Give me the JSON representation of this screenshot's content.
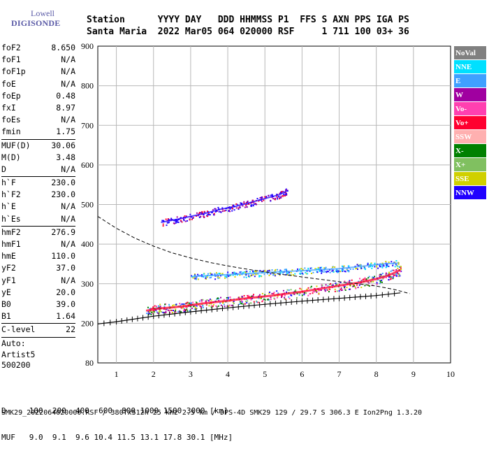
{
  "logo": {
    "top": "Lowell",
    "bottom": "DIGISONDE"
  },
  "header": {
    "line1": "Station      YYYY DAY   DDD HHMMSS P1  FFS S AXN PPS IGA PS",
    "line2": "Santa Maria  2022 Mar05 064 020000 RSF     1 711 100 03+ 36"
  },
  "params": {
    "group1": [
      {
        "name": "foF2",
        "value": "8.650"
      },
      {
        "name": "foF1",
        "value": "N/A"
      },
      {
        "name": "foF1p",
        "value": "N/A"
      },
      {
        "name": "foE",
        "value": "N/A"
      },
      {
        "name": "foEp",
        "value": "0.48"
      },
      {
        "name": "fxI",
        "value": "8.97"
      },
      {
        "name": "foEs",
        "value": "N/A"
      },
      {
        "name": "fmin",
        "value": "1.75"
      }
    ],
    "group2": [
      {
        "name": "MUF(D)",
        "value": "30.06"
      },
      {
        "name": "M(D)",
        "value": "3.48"
      },
      {
        "name": "D",
        "value": "N/A"
      }
    ],
    "group3": [
      {
        "name": "h`F",
        "value": "230.0"
      },
      {
        "name": "h`F2",
        "value": "230.0"
      },
      {
        "name": "h`E",
        "value": "N/A"
      },
      {
        "name": "h`Es",
        "value": "N/A"
      }
    ],
    "group4": [
      {
        "name": "hmF2",
        "value": "276.9"
      },
      {
        "name": "hmF1",
        "value": "N/A"
      },
      {
        "name": "hmE",
        "value": "110.0"
      },
      {
        "name": "yF2",
        "value": "37.0"
      },
      {
        "name": "yF1",
        "value": "N/A"
      },
      {
        "name": "yE",
        "value": "20.0"
      },
      {
        "name": "B0",
        "value": "39.0"
      },
      {
        "name": "B1",
        "value": "1.64"
      }
    ],
    "group5": [
      {
        "name": "C-level",
        "value": "22"
      }
    ]
  },
  "auto": {
    "line1": "Auto:",
    "line2": "Artist5",
    "line3": "500200"
  },
  "legend": [
    {
      "label": "NoVal",
      "color": "#808080"
    },
    {
      "label": "NNE",
      "color": "#00e0ff"
    },
    {
      "label": "E",
      "color": "#3fa0ff"
    },
    {
      "label": "W",
      "color": "#a000a0"
    },
    {
      "label": "Vo-",
      "color": "#ff40b0"
    },
    {
      "label": "Vo+",
      "color": "#ff0030"
    },
    {
      "label": "SSW",
      "color": "#ffb0b0"
    },
    {
      "label": "X-",
      "color": "#008000"
    },
    {
      "label": "X+",
      "color": "#80c060"
    },
    {
      "label": "SSE",
      "color": "#d0d000"
    },
    {
      "label": "NNW",
      "color": "#2000ff"
    }
  ],
  "footer": {
    "row1": "D     100  200  400  600  800 1000 1500 3000 [km]",
    "row2": "MUF   9.0  9.1  9.6 10.4 11.5 13.1 17.8 30.1 [MHz]",
    "row3": "SMK29_2022064020000.RSF / 380fx512h 25 kHz 2.5 km / DPS-4D SMK29 129 / 29.7 S 306.3 E Ion2Png 1.3.20"
  },
  "chart_data": {
    "type": "scatter",
    "title": "",
    "xlabel": "",
    "ylabel": "",
    "xlim": [
      0.5,
      10
    ],
    "ylim": [
      80,
      900
    ],
    "x_ticks": [
      1,
      2,
      3,
      4,
      5,
      6,
      7,
      8,
      9,
      10
    ],
    "y_ticks": [
      80,
      200,
      300,
      400,
      500,
      600,
      700,
      800,
      900
    ],
    "grid": true,
    "legend_position": "right",
    "traces": [
      {
        "name": "O-trace (F2)",
        "color": "#ff0030",
        "points": [
          [
            1.8,
            232
          ],
          [
            2.0,
            235
          ],
          [
            2.2,
            238
          ],
          [
            2.5,
            240
          ],
          [
            2.8,
            243
          ],
          [
            3.0,
            246
          ],
          [
            3.3,
            250
          ],
          [
            3.6,
            253
          ],
          [
            4.0,
            257
          ],
          [
            4.4,
            262
          ],
          [
            4.8,
            266
          ],
          [
            5.2,
            270
          ],
          [
            5.6,
            275
          ],
          [
            6.0,
            280
          ],
          [
            6.4,
            286
          ],
          [
            6.8,
            292
          ],
          [
            7.2,
            298
          ],
          [
            7.6,
            304
          ],
          [
            8.0,
            312
          ],
          [
            8.3,
            320
          ],
          [
            8.5,
            328
          ],
          [
            8.65,
            335
          ]
        ]
      },
      {
        "name": "2F echo",
        "color": "#2000ff",
        "points": [
          [
            2.2,
            455
          ],
          [
            2.6,
            462
          ],
          [
            3.0,
            470
          ],
          [
            3.4,
            478
          ],
          [
            3.8,
            488
          ],
          [
            4.2,
            495
          ],
          [
            4.6,
            505
          ],
          [
            5.0,
            515
          ],
          [
            5.4,
            525
          ],
          [
            5.6,
            535
          ]
        ]
      },
      {
        "name": "E-cusp echo",
        "color": "#3fa0ff",
        "points": [
          [
            3.0,
            318
          ],
          [
            3.4,
            320
          ],
          [
            3.8,
            322
          ],
          [
            4.2,
            324
          ],
          [
            4.6,
            326
          ],
          [
            5.0,
            328
          ],
          [
            5.4,
            330
          ],
          [
            5.8,
            332
          ],
          [
            6.2,
            334
          ],
          [
            6.6,
            336
          ],
          [
            7.0,
            338
          ],
          [
            7.4,
            342
          ],
          [
            7.8,
            346
          ],
          [
            8.2,
            350
          ],
          [
            8.6,
            352
          ]
        ]
      }
    ],
    "profile_line": {
      "name": "true height profile",
      "points": [
        [
          0.5,
          198
        ],
        [
          1.0,
          204
        ],
        [
          2.0,
          218
        ],
        [
          3.0,
          229
        ],
        [
          4.0,
          239
        ],
        [
          5.0,
          248
        ],
        [
          6.0,
          256
        ],
        [
          7.0,
          263
        ],
        [
          8.0,
          270
        ],
        [
          8.65,
          277
        ]
      ]
    },
    "muf_curve": {
      "name": "MUF curve",
      "points": [
        [
          0.5,
          470
        ],
        [
          1.0,
          440
        ],
        [
          1.5,
          415
        ],
        [
          2.0,
          395
        ],
        [
          2.5,
          378
        ],
        [
          3.0,
          365
        ],
        [
          3.5,
          354
        ],
        [
          4.0,
          345
        ],
        [
          4.5,
          337
        ],
        [
          5.0,
          330
        ],
        [
          5.5,
          323
        ],
        [
          6.0,
          317
        ],
        [
          6.5,
          311
        ],
        [
          7.0,
          305
        ],
        [
          7.5,
          300
        ],
        [
          8.0,
          294
        ],
        [
          8.5,
          285
        ],
        [
          8.9,
          275
        ]
      ]
    }
  }
}
